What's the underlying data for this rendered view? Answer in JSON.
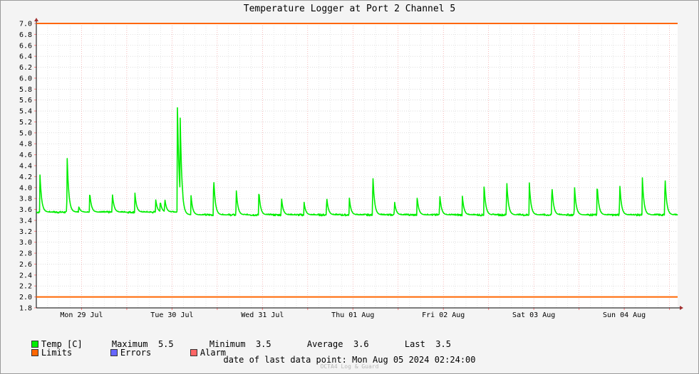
{
  "chart_data": {
    "type": "line",
    "title": "Temperature Logger at Port 2 Channel 5",
    "ylim": [
      1.8,
      7.0
    ],
    "yticks": [
      "1.8",
      "2.0",
      "2.2",
      "2.4",
      "2.6",
      "2.8",
      "3.0",
      "3.2",
      "3.4",
      "3.6",
      "3.8",
      "4.0",
      "4.2",
      "4.4",
      "4.6",
      "4.8",
      "5.0",
      "5.2",
      "5.4",
      "5.6",
      "5.8",
      "6.0",
      "6.2",
      "6.4",
      "6.6",
      "6.8",
      "7.0"
    ],
    "xlim": [
      0,
      7.09
    ],
    "day_labels": [
      "Mon 29 Jul",
      "Tue 30 Jul",
      "Wed 31 Jul",
      "Thu 01 Aug",
      "Fri 02 Aug",
      "Sat 03 Aug",
      "Sun 04 Aug"
    ],
    "day_centers": [
      0.5,
      1.5,
      2.5,
      3.5,
      4.5,
      5.5,
      6.5
    ],
    "limits": [
      2.0,
      7.0
    ],
    "grid": true,
    "series": [
      {
        "name": "Temp [C]",
        "color": "#00ee00",
        "baseline": 3.5,
        "spikes": [
          [
            0.04,
            4.25
          ],
          [
            0.34,
            4.6
          ],
          [
            0.47,
            3.65
          ],
          [
            0.59,
            3.92
          ],
          [
            0.84,
            3.9
          ],
          [
            1.09,
            3.9
          ],
          [
            1.32,
            3.78
          ],
          [
            1.37,
            3.75
          ],
          [
            1.42,
            3.8
          ],
          [
            1.56,
            5.56
          ],
          [
            1.59,
            5.35
          ],
          [
            1.71,
            3.86
          ],
          [
            1.96,
            4.2
          ],
          [
            2.21,
            3.97
          ],
          [
            2.46,
            3.95
          ],
          [
            2.71,
            3.82
          ],
          [
            2.96,
            3.73
          ],
          [
            3.21,
            3.83
          ],
          [
            3.46,
            3.82
          ],
          [
            3.72,
            4.25
          ],
          [
            3.96,
            3.75
          ],
          [
            4.21,
            3.83
          ],
          [
            4.46,
            3.88
          ],
          [
            4.71,
            3.85
          ],
          [
            4.95,
            4.05
          ],
          [
            5.2,
            4.15
          ],
          [
            5.45,
            4.1
          ],
          [
            5.7,
            4.05
          ],
          [
            5.95,
            4.03
          ],
          [
            6.2,
            4.07
          ],
          [
            6.45,
            4.08
          ],
          [
            6.7,
            4.18
          ],
          [
            6.95,
            4.22
          ]
        ]
      }
    ],
    "colors": {
      "limits": "#ff6600",
      "errors": "#6666ff",
      "alarm": "#ff6666",
      "temp": "#00ee00"
    }
  },
  "legend": {
    "temp_label": "Temp [C]",
    "maximum_label": "Maximum",
    "maximum_value": "5.5",
    "minimum_label": "Minimum",
    "minimum_value": "3.5",
    "average_label": "Average",
    "average_value": "3.6",
    "last_label": "Last",
    "last_value": "3.5",
    "limits_label": "Limits",
    "errors_label": "Errors",
    "alarm_label": "Alarm"
  },
  "footer": {
    "last_data_point": "date of last data point:  Mon Aug 05 2024 02:24:00",
    "credit": "OCTA4 Log & Guard"
  }
}
